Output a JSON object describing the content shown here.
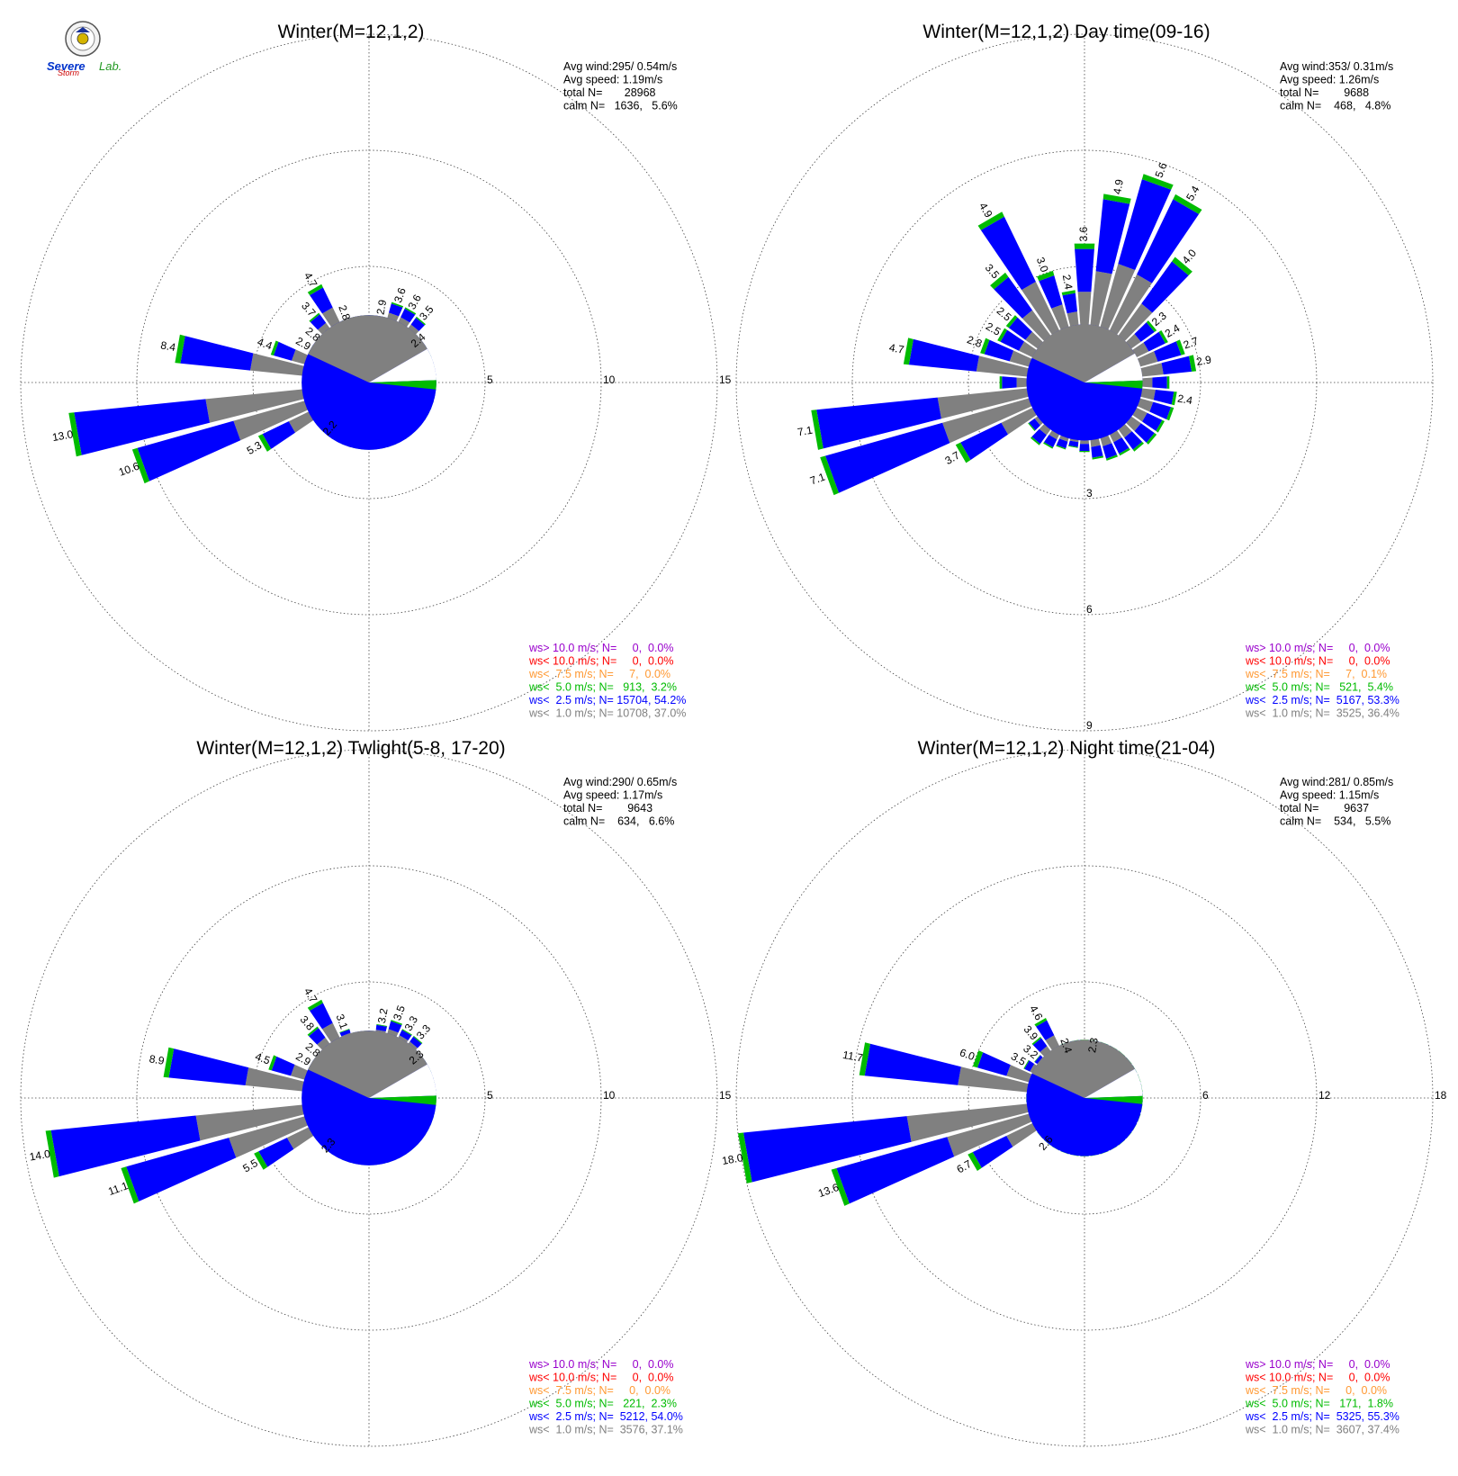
{
  "logo": {
    "text_a": "Severe",
    "text_b": "Storm",
    "text_c": "Lab."
  },
  "chart_data": [
    {
      "type": "windrose",
      "title": "Winter(M=12,1,2)",
      "ring_labels": [
        "5",
        "10",
        "15"
      ],
      "ring_max": 15,
      "stats": [
        "Avg wind:295/ 0.54m/s",
        "Avg speed: 1.19m/s",
        "total N=       28968",
        "calm N=   1636,   5.6%"
      ],
      "legend": [
        {
          "text": "ws> 10.0 m/s; N=     0,  0.0%",
          "color": "#9900cc"
        },
        {
          "text": "ws< 10.0 m/s; N=     0,  0.0%",
          "color": "#ff0000"
        },
        {
          "text": "ws<  7.5 m/s; N=     7,  0.0%",
          "color": "#ff9933"
        },
        {
          "text": "ws<  5.0 m/s; N=   913,  3.2%",
          "color": "#00bb00"
        },
        {
          "text": "ws<  2.5 m/s; N= 15704, 54.2%",
          "color": "#0000ff"
        },
        {
          "text": "ws<  1.0 m/s; N= 10708, 37.0%",
          "color": "#808080"
        }
      ],
      "calm_radius": 2.9,
      "sectors": [
        {
          "dir": 0,
          "v": 2.2
        },
        {
          "dir": 10,
          "v": 2.9
        },
        {
          "dir": 20,
          "v": 3.6
        },
        {
          "dir": 30,
          "v": 3.6
        },
        {
          "dir": 40,
          "v": 3.5
        },
        {
          "dir": 50,
          "v": 2.4
        },
        {
          "dir": 60,
          "v": 1.6
        },
        {
          "dir": 70,
          "v": 1.3
        },
        {
          "dir": 80,
          "v": 1.3
        },
        {
          "dir": 90,
          "v": 1.4
        },
        {
          "dir": 100,
          "v": 1.4
        },
        {
          "dir": 110,
          "v": 1.3
        },
        {
          "dir": 120,
          "v": 1.4
        },
        {
          "dir": 130,
          "v": 1.3
        },
        {
          "dir": 140,
          "v": 1.2
        },
        {
          "dir": 150,
          "v": 1.2
        },
        {
          "dir": 160,
          "v": 1.1
        },
        {
          "dir": 170,
          "v": 1.0
        },
        {
          "dir": 180,
          "v": 1.0
        },
        {
          "dir": 190,
          "v": 1.0
        },
        {
          "dir": 200,
          "v": 1.3
        },
        {
          "dir": 210,
          "v": 1.4
        },
        {
          "dir": 220,
          "v": 2.2
        },
        {
          "dir": 230,
          "v": 1.8
        },
        {
          "dir": 240,
          "v": 5.3
        },
        {
          "dir": 250,
          "v": 10.6
        },
        {
          "dir": 260,
          "v": 13.0
        },
        {
          "dir": 270,
          "v": 1.9
        },
        {
          "dir": 280,
          "v": 8.4
        },
        {
          "dir": 290,
          "v": 4.4
        },
        {
          "dir": 300,
          "v": 2.9
        },
        {
          "dir": 310,
          "v": 2.8
        },
        {
          "dir": 320,
          "v": 3.7
        },
        {
          "dir": 330,
          "v": 4.7
        },
        {
          "dir": 340,
          "v": 2.8
        },
        {
          "dir": 350,
          "v": 1.9
        }
      ],
      "bar_labels": [
        {
          "dir": 10,
          "text": "2.9"
        },
        {
          "dir": 20,
          "text": "3.6"
        },
        {
          "dir": 30,
          "text": "3.6"
        },
        {
          "dir": 40,
          "text": "3.5"
        },
        {
          "dir": 50,
          "text": "2.4"
        },
        {
          "dir": 220,
          "text": "2.2"
        },
        {
          "dir": 240,
          "text": "5.3"
        },
        {
          "dir": 250,
          "text": "10.6"
        },
        {
          "dir": 260,
          "text": "13.0"
        },
        {
          "dir": 280,
          "text": "8.4"
        },
        {
          "dir": 290,
          "text": "4.4"
        },
        {
          "dir": 300,
          "text": "2.9"
        },
        {
          "dir": 310,
          "text": "2.8"
        },
        {
          "dir": 320,
          "text": "3.7"
        },
        {
          "dir": 330,
          "text": "4.7"
        },
        {
          "dir": 340,
          "text": "2.8"
        }
      ]
    },
    {
      "type": "windrose",
      "title": "Winter(M=12,1,2) Day time(09-16)",
      "ring_labels": [
        "3",
        "6",
        "9"
      ],
      "ring_max": 9,
      "stats": [
        "Avg wind:353/ 0.31m/s",
        "Avg speed: 1.26m/s",
        "total N=        9688",
        "calm N=    468,   4.8%"
      ],
      "legend": [
        {
          "text": "ws> 10.0 m/s; N=     0,  0.0%",
          "color": "#9900cc"
        },
        {
          "text": "ws< 10.0 m/s; N=     0,  0.0%",
          "color": "#ff0000"
        },
        {
          "text": "ws<  7.5 m/s; N=     7,  0.1%",
          "color": "#ff9933"
        },
        {
          "text": "ws<  5.0 m/s; N=   521,  5.4%",
          "color": "#00bb00"
        },
        {
          "text": "ws<  2.5 m/s; N=  5167, 53.3%",
          "color": "#0000ff"
        },
        {
          "text": "ws<  1.0 m/s; N=  3525, 36.4%",
          "color": "#808080"
        }
      ],
      "calm_radius": 1.5,
      "sectors": [
        {
          "dir": 0,
          "v": 3.6
        },
        {
          "dir": 10,
          "v": 4.9
        },
        {
          "dir": 20,
          "v": 5.6
        },
        {
          "dir": 30,
          "v": 5.4
        },
        {
          "dir": 40,
          "v": 4.0
        },
        {
          "dir": 50,
          "v": 2.3
        },
        {
          "dir": 60,
          "v": 2.4
        },
        {
          "dir": 70,
          "v": 2.7
        },
        {
          "dir": 80,
          "v": 2.9
        },
        {
          "dir": 90,
          "v": 2.2
        },
        {
          "dir": 100,
          "v": 2.4
        },
        {
          "dir": 110,
          "v": 2.4
        },
        {
          "dir": 120,
          "v": 2.3
        },
        {
          "dir": 130,
          "v": 2.3
        },
        {
          "dir": 140,
          "v": 2.2
        },
        {
          "dir": 150,
          "v": 2.1
        },
        {
          "dir": 160,
          "v": 2.1
        },
        {
          "dir": 170,
          "v": 2.0
        },
        {
          "dir": 180,
          "v": 1.8
        },
        {
          "dir": 190,
          "v": 1.7
        },
        {
          "dir": 200,
          "v": 1.8
        },
        {
          "dir": 210,
          "v": 1.9
        },
        {
          "dir": 220,
          "v": 2.0
        },
        {
          "dir": 230,
          "v": 1.8
        },
        {
          "dir": 240,
          "v": 3.7
        },
        {
          "dir": 250,
          "v": 7.1
        },
        {
          "dir": 260,
          "v": 7.1
        },
        {
          "dir": 270,
          "v": 2.2
        },
        {
          "dir": 280,
          "v": 4.7
        },
        {
          "dir": 290,
          "v": 2.8
        },
        {
          "dir": 300,
          "v": 2.5
        },
        {
          "dir": 310,
          "v": 2.5
        },
        {
          "dir": 320,
          "v": 3.5
        },
        {
          "dir": 330,
          "v": 4.9
        },
        {
          "dir": 340,
          "v": 3.0
        },
        {
          "dir": 350,
          "v": 2.4
        }
      ],
      "bar_labels": [
        {
          "dir": 0,
          "text": "3.6"
        },
        {
          "dir": 10,
          "text": "4.9"
        },
        {
          "dir": 20,
          "text": "5.6"
        },
        {
          "dir": 30,
          "text": "5.4"
        },
        {
          "dir": 40,
          "text": "4.0"
        },
        {
          "dir": 50,
          "text": "2.3"
        },
        {
          "dir": 60,
          "text": "2.4"
        },
        {
          "dir": 70,
          "text": "2.7"
        },
        {
          "dir": 80,
          "text": "2.9"
        },
        {
          "dir": 100,
          "text": "2.4"
        },
        {
          "dir": 240,
          "text": "3.7"
        },
        {
          "dir": 250,
          "text": "7.1"
        },
        {
          "dir": 260,
          "text": "7.1"
        },
        {
          "dir": 280,
          "text": "4.7"
        },
        {
          "dir": 290,
          "text": "2.8"
        },
        {
          "dir": 300,
          "text": "2.5"
        },
        {
          "dir": 310,
          "text": "2.5"
        },
        {
          "dir": 320,
          "text": "3.5"
        },
        {
          "dir": 330,
          "text": "4.9"
        },
        {
          "dir": 340,
          "text": "3.0"
        },
        {
          "dir": 350,
          "text": "2.4"
        }
      ]
    },
    {
      "type": "windrose",
      "title": "Winter(M=12,1,2) Twlight(5-8, 17-20)",
      "ring_labels": [
        "5",
        "10",
        "15"
      ],
      "ring_max": 15,
      "stats": [
        "Avg wind:290/ 0.65m/s",
        "Avg speed: 1.17m/s",
        "total N=        9643",
        "calm N=    634,   6.6%"
      ],
      "legend": [
        {
          "text": "ws> 10.0 m/s; N=     0,  0.0%",
          "color": "#9900cc"
        },
        {
          "text": "ws< 10.0 m/s; N=     0,  0.0%",
          "color": "#ff0000"
        },
        {
          "text": "ws<  7.5 m/s; N=     0,  0.0%",
          "color": "#ff9933"
        },
        {
          "text": "ws<  5.0 m/s; N=   221,  2.3%",
          "color": "#00bb00"
        },
        {
          "text": "ws<  2.5 m/s; N=  5212, 54.0%",
          "color": "#0000ff"
        },
        {
          "text": "ws<  1.0 m/s; N=  3576, 37.1%",
          "color": "#808080"
        }
      ],
      "calm_radius": 2.9,
      "sectors": [
        {
          "dir": 0,
          "v": 2.2
        },
        {
          "dir": 10,
          "v": 3.2
        },
        {
          "dir": 20,
          "v": 3.5
        },
        {
          "dir": 30,
          "v": 3.3
        },
        {
          "dir": 40,
          "v": 3.3
        },
        {
          "dir": 50,
          "v": 2.3
        },
        {
          "dir": 60,
          "v": 1.4
        },
        {
          "dir": 70,
          "v": 1.2
        },
        {
          "dir": 80,
          "v": 1.2
        },
        {
          "dir": 90,
          "v": 1.2
        },
        {
          "dir": 100,
          "v": 1.2
        },
        {
          "dir": 110,
          "v": 1.2
        },
        {
          "dir": 120,
          "v": 1.2
        },
        {
          "dir": 130,
          "v": 1.2
        },
        {
          "dir": 140,
          "v": 1.1
        },
        {
          "dir": 150,
          "v": 1.1
        },
        {
          "dir": 160,
          "v": 1.0
        },
        {
          "dir": 170,
          "v": 1.0
        },
        {
          "dir": 180,
          "v": 1.0
        },
        {
          "dir": 190,
          "v": 1.0
        },
        {
          "dir": 200,
          "v": 1.2
        },
        {
          "dir": 210,
          "v": 1.4
        },
        {
          "dir": 220,
          "v": 2.3
        },
        {
          "dir": 230,
          "v": 1.8
        },
        {
          "dir": 240,
          "v": 5.5
        },
        {
          "dir": 250,
          "v": 11.1
        },
        {
          "dir": 260,
          "v": 14.0
        },
        {
          "dir": 270,
          "v": 1.9
        },
        {
          "dir": 280,
          "v": 8.9
        },
        {
          "dir": 290,
          "v": 4.5
        },
        {
          "dir": 300,
          "v": 2.9
        },
        {
          "dir": 310,
          "v": 2.8
        },
        {
          "dir": 320,
          "v": 3.8
        },
        {
          "dir": 330,
          "v": 4.7
        },
        {
          "dir": 340,
          "v": 3.1
        },
        {
          "dir": 350,
          "v": 1.9
        }
      ],
      "bar_labels": [
        {
          "dir": 10,
          "text": "3.2"
        },
        {
          "dir": 20,
          "text": "3.5"
        },
        {
          "dir": 30,
          "text": "3.3"
        },
        {
          "dir": 40,
          "text": "3.3"
        },
        {
          "dir": 50,
          "text": "2.3"
        },
        {
          "dir": 220,
          "text": "2.3"
        },
        {
          "dir": 240,
          "text": "5.5"
        },
        {
          "dir": 250,
          "text": "11.1"
        },
        {
          "dir": 260,
          "text": "14.0"
        },
        {
          "dir": 280,
          "text": "8.9"
        },
        {
          "dir": 290,
          "text": "4.5"
        },
        {
          "dir": 300,
          "text": "2.9"
        },
        {
          "dir": 310,
          "text": "2.8"
        },
        {
          "dir": 320,
          "text": "3.8"
        },
        {
          "dir": 330,
          "text": "4.7"
        },
        {
          "dir": 340,
          "text": "3.1"
        }
      ]
    },
    {
      "type": "windrose",
      "title": "Winter(M=12,1,2) Night time(21-04)",
      "ring_labels": [
        "6",
        "12",
        "18"
      ],
      "ring_max": 18,
      "stats": [
        "Avg wind:281/ 0.85m/s",
        "Avg speed: 1.15m/s",
        "total N=        9637",
        "calm N=    534,   5.5%"
      ],
      "legend": [
        {
          "text": "ws> 10.0 m/s; N=     0,  0.0%",
          "color": "#9900cc"
        },
        {
          "text": "ws< 10.0 m/s; N=     0,  0.0%",
          "color": "#ff0000"
        },
        {
          "text": "ws<  7.5 m/s; N=     0,  0.0%",
          "color": "#ff9933"
        },
        {
          "text": "ws<  5.0 m/s; N=   171,  1.8%",
          "color": "#00bb00"
        },
        {
          "text": "ws<  2.5 m/s; N=  5325, 55.3%",
          "color": "#0000ff"
        },
        {
          "text": "ws<  1.0 m/s; N=  3607, 37.4%",
          "color": "#808080"
        }
      ],
      "calm_radius": 3.0,
      "sectors": [
        {
          "dir": 0,
          "v": 1.6
        },
        {
          "dir": 10,
          "v": 2.3
        },
        {
          "dir": 20,
          "v": 2.2
        },
        {
          "dir": 30,
          "v": 2.0
        },
        {
          "dir": 40,
          "v": 1.5
        },
        {
          "dir": 50,
          "v": 1.2
        },
        {
          "dir": 60,
          "v": 1.0
        },
        {
          "dir": 70,
          "v": 0.9
        },
        {
          "dir": 80,
          "v": 0.9
        },
        {
          "dir": 90,
          "v": 0.9
        },
        {
          "dir": 100,
          "v": 0.9
        },
        {
          "dir": 110,
          "v": 0.9
        },
        {
          "dir": 120,
          "v": 0.8
        },
        {
          "dir": 130,
          "v": 0.8
        },
        {
          "dir": 140,
          "v": 0.8
        },
        {
          "dir": 150,
          "v": 0.8
        },
        {
          "dir": 160,
          "v": 0.7
        },
        {
          "dir": 170,
          "v": 0.7
        },
        {
          "dir": 180,
          "v": 0.8
        },
        {
          "dir": 190,
          "v": 0.8
        },
        {
          "dir": 200,
          "v": 1.2
        },
        {
          "dir": 210,
          "v": 1.5
        },
        {
          "dir": 220,
          "v": 2.6
        },
        {
          "dir": 230,
          "v": 2.0
        },
        {
          "dir": 240,
          "v": 6.7
        },
        {
          "dir": 250,
          "v": 13.6
        },
        {
          "dir": 260,
          "v": 18.0
        },
        {
          "dir": 270,
          "v": 2.2
        },
        {
          "dir": 280,
          "v": 11.7
        },
        {
          "dir": 290,
          "v": 6.0
        },
        {
          "dir": 300,
          "v": 3.5
        },
        {
          "dir": 310,
          "v": 3.2
        },
        {
          "dir": 320,
          "v": 3.9
        },
        {
          "dir": 330,
          "v": 4.6
        },
        {
          "dir": 340,
          "v": 2.4
        },
        {
          "dir": 350,
          "v": 1.5
        }
      ],
      "bar_labels": [
        {
          "dir": 10,
          "text": "2.3"
        },
        {
          "dir": 220,
          "text": "2.6"
        },
        {
          "dir": 240,
          "text": "6.7"
        },
        {
          "dir": 250,
          "text": "13.6"
        },
        {
          "dir": 260,
          "text": "18.0"
        },
        {
          "dir": 280,
          "text": "11.7"
        },
        {
          "dir": 290,
          "text": "6.0"
        },
        {
          "dir": 300,
          "text": "3.5"
        },
        {
          "dir": 310,
          "text": "3.2"
        },
        {
          "dir": 320,
          "text": "3.9"
        },
        {
          "dir": 330,
          "text": "4.6"
        },
        {
          "dir": 340,
          "text": "2.4"
        }
      ]
    }
  ]
}
